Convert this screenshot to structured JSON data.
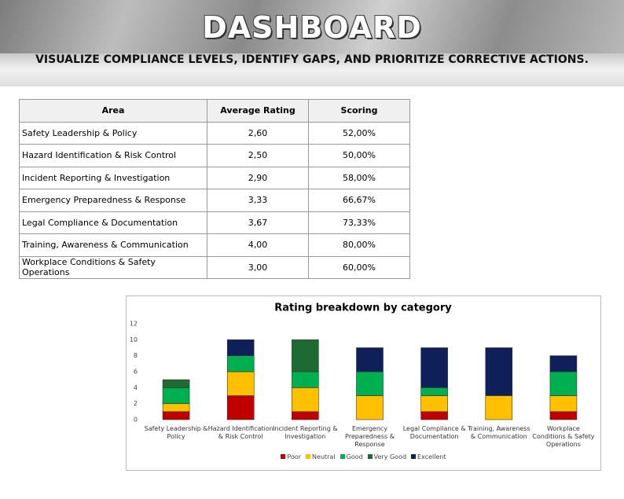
{
  "header": {
    "title": "DASHBOARD",
    "subtitle": "VISUALIZE COMPLIANCE LEVELS, IDENTIFY GAPS, AND PRIORITIZE CORRECTIVE ACTIONS."
  },
  "table": {
    "columns": [
      "Area",
      "Average Rating",
      "Scoring"
    ],
    "rows": [
      [
        "Safety Leadership & Policy",
        "2,60",
        "52,00%"
      ],
      [
        "Hazard Identification & Risk Control",
        "2,50",
        "50,00%"
      ],
      [
        "Incident Reporting & Investigation",
        "2,90",
        "58,00%"
      ],
      [
        "Emergency Preparedness & Response",
        "3,33",
        "66,67%"
      ],
      [
        "Legal Compliance & Documentation",
        "3,67",
        "73,33%"
      ],
      [
        "Training, Awareness & Communication",
        "4,00",
        "80,00%"
      ],
      [
        "Workplace Conditions & Safety Operations",
        "3,00",
        "60,00%"
      ]
    ]
  },
  "chart_data": {
    "type": "stacked_bar",
    "title": "Rating breakdown by category",
    "categories": [
      "Safety Leadership & Policy",
      "Hazard Identification & Risk Control",
      "Incident Reporting & Investigation",
      "Emergency Preparedness & Response",
      "Legal Compliance & Documentation",
      "Training, Awareness & Communication",
      "Workplace Conditions & Safety Operations"
    ],
    "series": [
      {
        "name": "Poor",
        "color": "#c00000",
        "values": [
          1,
          3,
          1,
          0,
          1,
          0,
          1
        ]
      },
      {
        "name": "Neutral",
        "color": "#ffc000",
        "values": [
          1,
          3,
          3,
          3,
          2,
          3,
          2
        ]
      },
      {
        "name": "Good",
        "color": "#00b050",
        "values": [
          2,
          2,
          2,
          3,
          1,
          0,
          3
        ]
      },
      {
        "name": "Very Good",
        "color": "#1d6b33",
        "values": [
          1,
          0,
          4,
          0,
          0,
          0,
          0
        ]
      },
      {
        "name": "Excellent",
        "color": "#0f1f5a",
        "values": [
          0,
          2,
          0,
          3,
          5,
          6,
          2
        ]
      }
    ],
    "ylim": [
      0,
      12
    ],
    "yticks": [
      0,
      2,
      4,
      6,
      8,
      10,
      12
    ],
    "grid": false,
    "legend": "bottom"
  }
}
